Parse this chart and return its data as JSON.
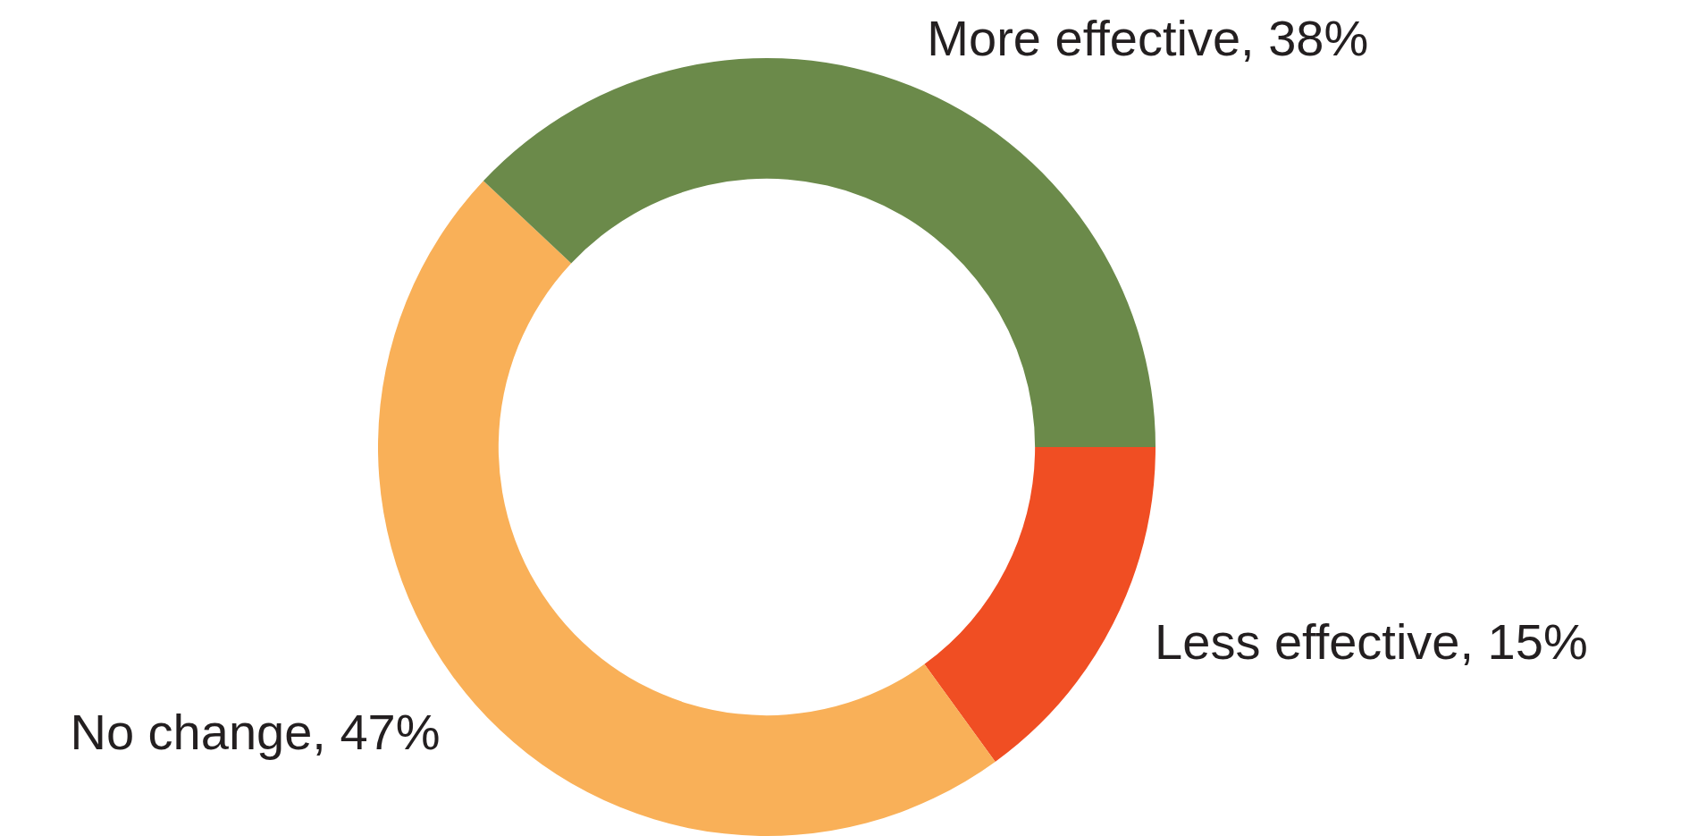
{
  "chart_data": {
    "type": "donut",
    "categories": [
      "Less effective",
      "No change",
      "More effective"
    ],
    "values": [
      15,
      47,
      38
    ],
    "value_labels": [
      "15%",
      "47%",
      "38%"
    ],
    "colors": [
      "#f04e23",
      "#f9b058",
      "#6b8a4a"
    ],
    "legend": false
  }
}
